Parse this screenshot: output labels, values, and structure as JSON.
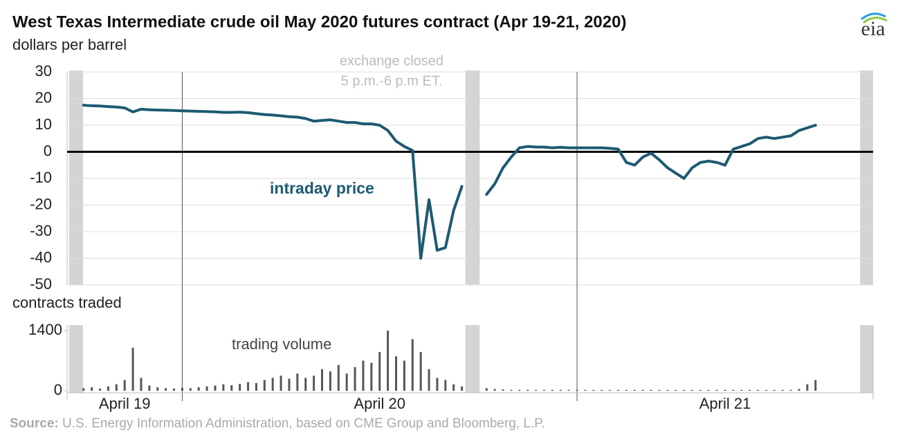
{
  "title": "West Texas Intermediate crude oil May 2020 futures contract (Apr 19-21, 2020)",
  "logo": "eia",
  "source_label": "Source:",
  "source": "U.S. Energy Information Administration, based on CME Group and Bloomberg, L.P.",
  "chart_data": [
    {
      "type": "line",
      "y_label": "dollars per barrel",
      "annotations": [
        "exchange closed",
        "5 p.m.-6 p.m ET.",
        "intraday price"
      ],
      "ylim": [
        -50,
        30
      ],
      "yticks": [
        30,
        20,
        10,
        0,
        -10,
        -20,
        -30,
        -40,
        -50
      ],
      "grid": true,
      "series": [
        {
          "name": "intraday price",
          "color": "#1d5a72",
          "values": [
            null,
            null,
            17.5,
            17.3,
            17.2,
            17,
            16.8,
            16.5,
            15,
            16,
            15.8,
            15.7,
            15.6,
            15.5,
            15.4,
            15.3,
            15.2,
            15.1,
            15,
            14.8,
            14.8,
            14.9,
            14.7,
            14.3,
            14,
            13.8,
            13.5,
            13.2,
            13,
            12.5,
            11.5,
            11.8,
            12,
            11.5,
            11,
            11,
            10.5,
            10.5,
            10,
            8,
            4,
            2,
            0.5,
            -40,
            -18,
            -37,
            -36,
            -22,
            -13,
            null,
            null,
            -16,
            -12,
            -6,
            -2,
            1.5,
            2,
            1.8,
            1.8,
            1.5,
            1.7,
            1.5,
            1.5,
            1.5,
            1.5,
            1.5,
            1.3,
            1,
            -4,
            -5,
            -2,
            -0.5,
            -3,
            -6,
            -8,
            -10,
            -6,
            -4,
            -3.5,
            -4,
            -5,
            1,
            2,
            3,
            5,
            5.5,
            5,
            5.5,
            6,
            8,
            9,
            10,
            null,
            null,
            null,
            null,
            null,
            null,
            null
          ]
        }
      ]
    },
    {
      "type": "bar",
      "y_label": "contracts traded",
      "annotations": [
        "trading volume"
      ],
      "x_labels": [
        "April 19",
        "April 20",
        "April 21"
      ],
      "ylim": [
        0,
        1400
      ],
      "yticks": [
        0,
        1400
      ],
      "color": "#555555",
      "values": [
        null,
        null,
        60,
        80,
        50,
        100,
        150,
        250,
        1000,
        300,
        120,
        80,
        60,
        50,
        70,
        60,
        80,
        100,
        120,
        150,
        130,
        160,
        200,
        180,
        250,
        300,
        350,
        280,
        400,
        300,
        350,
        500,
        450,
        600,
        400,
        550,
        700,
        650,
        900,
        1400,
        800,
        700,
        1200,
        900,
        500,
        300,
        250,
        150,
        100,
        null,
        null,
        60,
        40,
        30,
        20,
        20,
        20,
        20,
        20,
        20,
        20,
        20,
        20,
        20,
        20,
        20,
        20,
        20,
        20,
        20,
        20,
        20,
        20,
        20,
        20,
        20,
        20,
        20,
        20,
        20,
        20,
        20,
        20,
        20,
        20,
        20,
        20,
        20,
        20,
        40,
        150,
        250,
        null,
        null,
        null,
        null,
        null,
        null,
        null
      ]
    }
  ]
}
